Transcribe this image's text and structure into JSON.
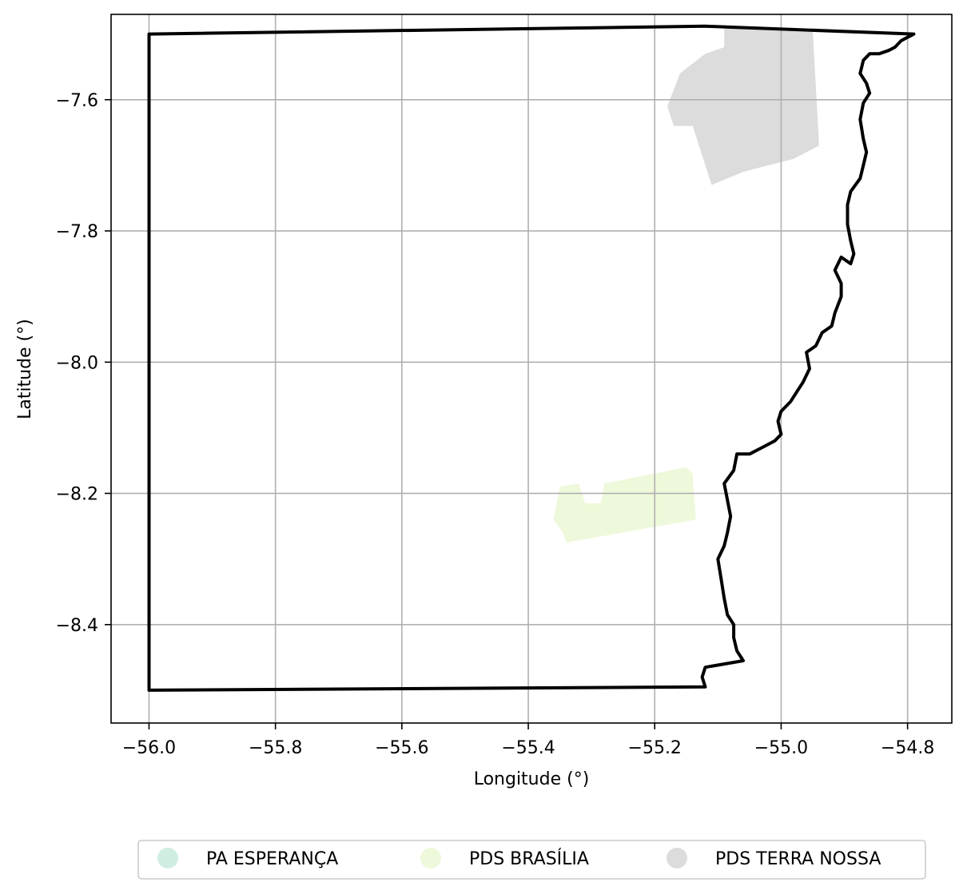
{
  "figure": {
    "xlabel": "Longitude (°)",
    "ylabel": "Latitude (°)"
  },
  "chart_data": {
    "type": "map",
    "xlim": [
      -56.06,
      -54.73
    ],
    "ylim": [
      -8.55,
      -7.47
    ],
    "grid": true,
    "x_ticks": [
      {
        "value": -56.0,
        "label": "−56.0"
      },
      {
        "value": -55.8,
        "label": "−55.8"
      },
      {
        "value": -55.6,
        "label": "−55.6"
      },
      {
        "value": -55.4,
        "label": "−55.4"
      },
      {
        "value": -55.2,
        "label": "−55.2"
      },
      {
        "value": -55.0,
        "label": "−55.0"
      },
      {
        "value": -54.8,
        "label": "−54.8"
      }
    ],
    "y_ticks": [
      {
        "value": -7.6,
        "label": "−7.6"
      },
      {
        "value": -7.8,
        "label": "−7.8"
      },
      {
        "value": -8.0,
        "label": "−8.0"
      },
      {
        "value": -8.2,
        "label": "−8.2"
      },
      {
        "value": -8.4,
        "label": "−8.4"
      }
    ],
    "legend": {
      "placement": "bottom-center",
      "entries": [
        {
          "label": "PA ESPERANÇA",
          "color": "#cfeee1"
        },
        {
          "label": "PDS BRASÍLIA",
          "color": "#eef8da"
        },
        {
          "label": "PDS TERRA NOSSA",
          "color": "#dcdcdc"
        }
      ]
    },
    "features": [
      {
        "name": "PDS TERRA NOSSA",
        "color": "#dcdcdc",
        "coords": [
          [
            -55.09,
            -7.49
          ],
          [
            -54.95,
            -7.495
          ],
          [
            -54.94,
            -7.67
          ],
          [
            -54.98,
            -7.69
          ],
          [
            -55.02,
            -7.7
          ],
          [
            -55.06,
            -7.71
          ],
          [
            -55.11,
            -7.73
          ],
          [
            -55.14,
            -7.64
          ],
          [
            -55.17,
            -7.64
          ],
          [
            -55.18,
            -7.61
          ],
          [
            -55.16,
            -7.56
          ],
          [
            -55.12,
            -7.53
          ],
          [
            -55.09,
            -7.52
          ]
        ]
      },
      {
        "name": "PDS BRASÍLIA",
        "color": "#eef8da",
        "coords": [
          [
            -55.35,
            -8.19
          ],
          [
            -55.32,
            -8.185
          ],
          [
            -55.31,
            -8.215
          ],
          [
            -55.285,
            -8.215
          ],
          [
            -55.28,
            -8.185
          ],
          [
            -55.15,
            -8.16
          ],
          [
            -55.14,
            -8.17
          ],
          [
            -55.135,
            -8.24
          ],
          [
            -55.34,
            -8.275
          ],
          [
            -55.345,
            -8.26
          ],
          [
            -55.36,
            -8.24
          ],
          [
            -55.355,
            -8.215
          ]
        ]
      }
    ],
    "boundary": {
      "color": "#000000",
      "coords": [
        [
          -56.0,
          -7.5
        ],
        [
          -55.12,
          -7.488
        ],
        [
          -54.79,
          -7.5
        ],
        [
          -54.8,
          -7.505
        ],
        [
          -54.81,
          -7.51
        ],
        [
          -54.82,
          -7.52
        ],
        [
          -54.83,
          -7.525
        ],
        [
          -54.845,
          -7.53
        ],
        [
          -54.86,
          -7.53
        ],
        [
          -54.87,
          -7.54
        ],
        [
          -54.875,
          -7.56
        ],
        [
          -54.865,
          -7.575
        ],
        [
          -54.86,
          -7.59
        ],
        [
          -54.87,
          -7.605
        ],
        [
          -54.875,
          -7.63
        ],
        [
          -54.87,
          -7.66
        ],
        [
          -54.865,
          -7.68
        ],
        [
          -54.87,
          -7.7
        ],
        [
          -54.875,
          -7.72
        ],
        [
          -54.89,
          -7.74
        ],
        [
          -54.895,
          -7.76
        ],
        [
          -54.895,
          -7.79
        ],
        [
          -54.89,
          -7.815
        ],
        [
          -54.885,
          -7.835
        ],
        [
          -54.89,
          -7.85
        ],
        [
          -54.905,
          -7.84
        ],
        [
          -54.915,
          -7.86
        ],
        [
          -54.905,
          -7.88
        ],
        [
          -54.905,
          -7.9
        ],
        [
          -54.915,
          -7.925
        ],
        [
          -54.92,
          -7.945
        ],
        [
          -54.935,
          -7.955
        ],
        [
          -54.945,
          -7.975
        ],
        [
          -54.96,
          -7.985
        ],
        [
          -54.955,
          -8.01
        ],
        [
          -54.965,
          -8.03
        ],
        [
          -54.975,
          -8.045
        ],
        [
          -54.985,
          -8.06
        ],
        [
          -55.0,
          -8.075
        ],
        [
          -55.005,
          -8.09
        ],
        [
          -55.0,
          -8.11
        ],
        [
          -55.01,
          -8.12
        ],
        [
          -55.03,
          -8.13
        ],
        [
          -55.05,
          -8.14
        ],
        [
          -55.07,
          -8.14
        ],
        [
          -55.075,
          -8.165
        ],
        [
          -55.09,
          -8.185
        ],
        [
          -55.085,
          -8.21
        ],
        [
          -55.08,
          -8.235
        ],
        [
          -55.085,
          -8.26
        ],
        [
          -55.09,
          -8.28
        ],
        [
          -55.1,
          -8.3
        ],
        [
          -55.095,
          -8.33
        ],
        [
          -55.09,
          -8.36
        ],
        [
          -55.085,
          -8.385
        ],
        [
          -55.075,
          -8.4
        ],
        [
          -55.075,
          -8.42
        ],
        [
          -55.07,
          -8.44
        ],
        [
          -55.06,
          -8.455
        ],
        [
          -55.09,
          -8.46
        ],
        [
          -55.12,
          -8.465
        ],
        [
          -55.125,
          -8.48
        ],
        [
          -55.12,
          -8.495
        ],
        [
          -56.0,
          -8.5
        ],
        [
          -56.0,
          -7.5
        ]
      ]
    }
  }
}
